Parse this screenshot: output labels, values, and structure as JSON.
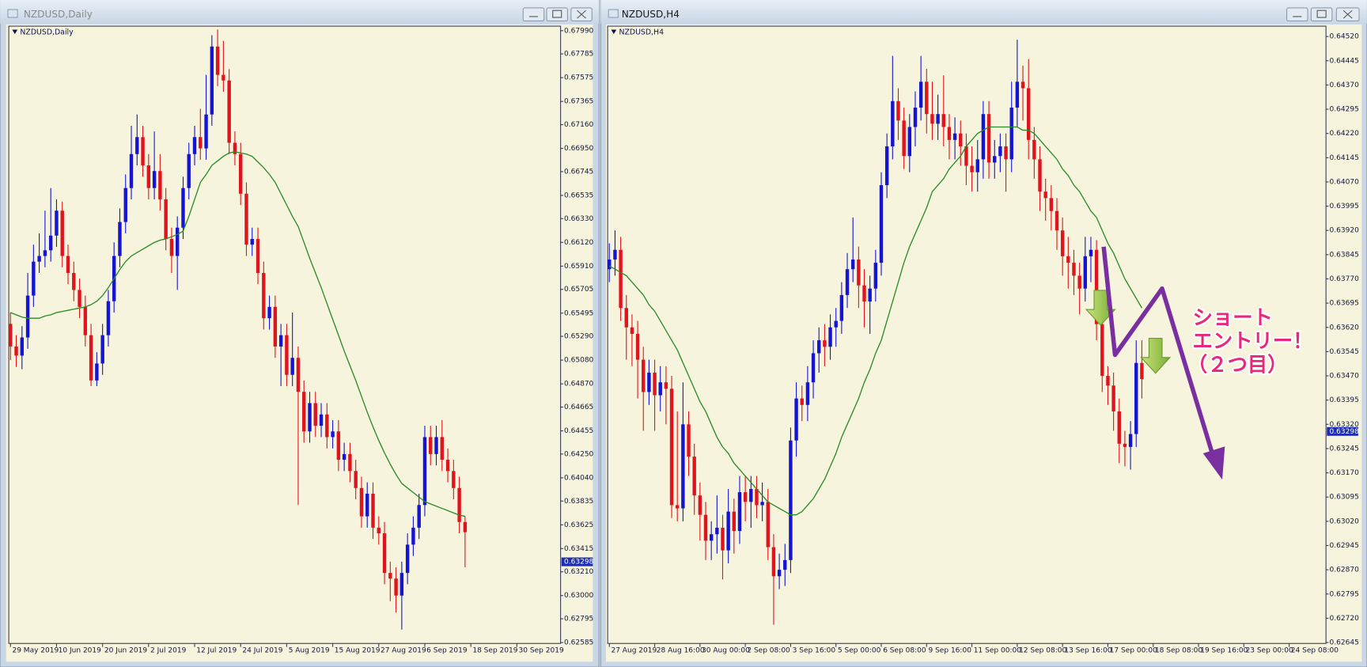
{
  "chart_data": [
    {
      "type": "candlestick",
      "window_title": "NZDUSD,Daily",
      "title": "NZDUSD,Daily",
      "up_color": "#1414d2",
      "down_color": "#e0141e",
      "ma_color": "#2a8a2a",
      "xlim": [
        -0.3,
        95.6
      ],
      "ylim": [
        0.62577,
        0.6803
      ],
      "xticks": [
        {
          "value": 0,
          "label": "29 May 2019"
        },
        {
          "value": 8,
          "label": "10 Jun 2019"
        },
        {
          "value": 16,
          "label": "20 Jun 2019"
        },
        {
          "value": 24,
          "label": "2 Jul 2019"
        },
        {
          "value": 32,
          "label": "12 Jul 2019"
        },
        {
          "value": 40,
          "label": "24 Jul 2019"
        },
        {
          "value": 48,
          "label": "5 Aug 2019"
        },
        {
          "value": 56,
          "label": "15 Aug 2019"
        },
        {
          "value": 64,
          "label": "27 Aug 2019"
        },
        {
          "value": 72,
          "label": "6 Sep 2019"
        },
        {
          "value": 80,
          "label": "18 Sep 2019"
        },
        {
          "value": 88,
          "label": "30 Sep 2019"
        }
      ],
      "yticks": [
        {
          "value": 0.6799,
          "label": "0.67990"
        },
        0.67785,
        0.67575,
        0.67365,
        {
          "value": 0.6716,
          "label": "0.67160"
        },
        {
          "value": 0.6695,
          "label": "0.66950"
        },
        0.66745,
        0.66535,
        {
          "value": 0.6633,
          "label": "0.66330"
        },
        {
          "value": 0.6612,
          "label": "0.66120"
        },
        {
          "value": 0.6591,
          "label": "0.65910"
        },
        0.65705,
        0.65495,
        {
          "value": 0.6529,
          "label": "0.65290"
        },
        {
          "value": 0.6508,
          "label": "0.65080"
        },
        {
          "value": 0.6487,
          "label": "0.64870"
        },
        0.64665,
        0.64455,
        {
          "value": 0.6425,
          "label": "0.64250"
        },
        {
          "value": 0.6404,
          "label": "0.64040"
        },
        0.63835,
        0.63625,
        0.63415,
        {
          "value": 0.6321,
          "label": "0.63210"
        },
        {
          "value": 0.63,
          "label": "0.63000"
        },
        0.62795,
        0.62585
      ],
      "current_price": 0.63298,
      "open": [
        0.654,
        0.652,
        0.6512,
        0.6528,
        0.6565,
        0.6595,
        0.66,
        0.6605,
        0.6618,
        0.664,
        0.66,
        0.6585,
        0.657,
        0.6555,
        0.653,
        0.649,
        0.6505,
        0.653,
        0.656,
        0.66,
        0.663,
        0.666,
        0.669,
        0.6705,
        0.668,
        0.666,
        0.6675,
        0.665,
        0.6615,
        0.66,
        0.6625,
        0.666,
        0.669,
        0.6705,
        0.6695,
        0.6725,
        0.6785,
        0.676,
        0.6755,
        0.67,
        0.669,
        0.6655,
        0.661,
        0.6615,
        0.6585,
        0.6545,
        0.6555,
        0.652,
        0.653,
        0.6495,
        0.651,
        0.648,
        0.6445,
        0.647,
        0.645,
        0.646,
        0.644,
        0.6445,
        0.642,
        0.6425,
        0.641,
        0.6395,
        0.637,
        0.639,
        0.636,
        0.6355,
        0.632,
        0.6315,
        0.63,
        0.632,
        0.6345,
        0.636,
        0.638,
        0.644,
        0.6425,
        0.644,
        0.642,
        0.641,
        0.6395,
        0.6365
      ],
      "high": [
        0.655,
        0.653,
        0.6538,
        0.6585,
        0.661,
        0.662,
        0.664,
        0.666,
        0.665,
        0.6648,
        0.661,
        0.6595,
        0.658,
        0.6565,
        0.654,
        0.6515,
        0.654,
        0.657,
        0.6612,
        0.6642,
        0.6672,
        0.6715,
        0.6725,
        0.6715,
        0.669,
        0.671,
        0.669,
        0.666,
        0.6625,
        0.6635,
        0.667,
        0.67,
        0.6715,
        0.673,
        0.676,
        0.6795,
        0.68,
        0.679,
        0.6765,
        0.671,
        0.67,
        0.6665,
        0.6625,
        0.6625,
        0.6595,
        0.6565,
        0.6565,
        0.654,
        0.654,
        0.655,
        0.652,
        0.649,
        0.648,
        0.648,
        0.647,
        0.647,
        0.6455,
        0.6455,
        0.6435,
        0.6435,
        0.642,
        0.6405,
        0.64,
        0.64,
        0.637,
        0.6365,
        0.633,
        0.6325,
        0.633,
        0.6355,
        0.637,
        0.639,
        0.645,
        0.645,
        0.645,
        0.6455,
        0.643,
        0.642,
        0.6405,
        0.637
      ],
      "low": [
        0.6508,
        0.6502,
        0.65,
        0.6518,
        0.6555,
        0.6585,
        0.659,
        0.6595,
        0.6608,
        0.659,
        0.6575,
        0.656,
        0.6545,
        0.652,
        0.6485,
        0.6485,
        0.6495,
        0.652,
        0.655,
        0.659,
        0.662,
        0.665,
        0.668,
        0.667,
        0.665,
        0.665,
        0.664,
        0.6605,
        0.6585,
        0.657,
        0.6615,
        0.665,
        0.668,
        0.6685,
        0.6685,
        0.6715,
        0.675,
        0.6745,
        0.669,
        0.668,
        0.6645,
        0.66,
        0.66,
        0.6575,
        0.6535,
        0.6535,
        0.651,
        0.6485,
        0.6485,
        0.6485,
        0.638,
        0.6435,
        0.6435,
        0.644,
        0.644,
        0.643,
        0.643,
        0.641,
        0.641,
        0.64,
        0.6385,
        0.636,
        0.636,
        0.635,
        0.6345,
        0.631,
        0.6295,
        0.6285,
        0.627,
        0.631,
        0.6335,
        0.635,
        0.637,
        0.6415,
        0.6415,
        0.641,
        0.64,
        0.6385,
        0.6355,
        0.6325
      ],
      "close": [
        0.652,
        0.6512,
        0.6528,
        0.6565,
        0.6595,
        0.66,
        0.6605,
        0.6618,
        0.664,
        0.66,
        0.6585,
        0.657,
        0.6555,
        0.653,
        0.649,
        0.6505,
        0.653,
        0.656,
        0.66,
        0.663,
        0.666,
        0.669,
        0.6705,
        0.668,
        0.666,
        0.6675,
        0.665,
        0.6615,
        0.66,
        0.6625,
        0.666,
        0.669,
        0.6705,
        0.6695,
        0.6725,
        0.6785,
        0.676,
        0.6755,
        0.67,
        0.669,
        0.6655,
        0.661,
        0.6615,
        0.6585,
        0.6545,
        0.6555,
        0.652,
        0.653,
        0.6495,
        0.651,
        0.648,
        0.6445,
        0.647,
        0.645,
        0.646,
        0.644,
        0.6445,
        0.642,
        0.6425,
        0.641,
        0.6395,
        0.637,
        0.639,
        0.636,
        0.6355,
        0.632,
        0.6315,
        0.63,
        0.632,
        0.6345,
        0.636,
        0.638,
        0.644,
        0.6425,
        0.644,
        0.642,
        0.641,
        0.6395,
        0.6365,
        0.6356
      ],
      "ma": [
        0.655,
        0.6548,
        0.6546,
        0.6545,
        0.6545,
        0.6545,
        0.6547,
        0.6548,
        0.655,
        0.6551,
        0.6552,
        0.6553,
        0.6554,
        0.6555,
        0.6557,
        0.656,
        0.6565,
        0.6572,
        0.658,
        0.6588,
        0.6595,
        0.66,
        0.6603,
        0.6606,
        0.6609,
        0.6612,
        0.6614,
        0.6615,
        0.6617,
        0.6619,
        0.6622,
        0.6635,
        0.665,
        0.6665,
        0.6672,
        0.668,
        0.6684,
        0.6688,
        0.6691,
        0.6692,
        0.6691,
        0.669,
        0.6688,
        0.6683,
        0.6678,
        0.6672,
        0.6665,
        0.6655,
        0.6645,
        0.6635,
        0.6626,
        0.6612,
        0.6598,
        0.6585,
        0.6572,
        0.6558,
        0.6544,
        0.653,
        0.6516,
        0.6503,
        0.649,
        0.6476,
        0.6462,
        0.6449,
        0.6437,
        0.6426,
        0.6416,
        0.6407,
        0.6399,
        0.6395,
        0.6391,
        0.6387,
        0.6383,
        0.6381,
        0.6379,
        0.6377,
        0.6375,
        0.6373,
        0.6371,
        0.637
      ]
    },
    {
      "type": "candlestick",
      "window_title": "NZDUSD,H4",
      "title": "NZDUSD,H4",
      "up_color": "#1414d2",
      "down_color": "#e0141e",
      "ma_color": "#2a8a2a",
      "xlim": [
        -0.3,
        126.5
      ],
      "ylim": [
        0.62642,
        0.64552
      ],
      "xticks": [
        {
          "value": 0,
          "label": "27 Aug 2019"
        },
        {
          "value": 8,
          "label": "28 Aug 16:00"
        },
        {
          "value": 16,
          "label": "30 Aug 00:00"
        },
        {
          "value": 24,
          "label": "2 Sep 08:00"
        },
        {
          "value": 32,
          "label": "3 Sep 16:00"
        },
        {
          "value": 40,
          "label": "5 Sep 00:00"
        },
        {
          "value": 48,
          "label": "6 Sep 08:00"
        },
        {
          "value": 56,
          "label": "9 Sep 16:00"
        },
        {
          "value": 64,
          "label": "11 Sep 00:00"
        },
        {
          "value": 72,
          "label": "12 Sep 08:00"
        },
        {
          "value": 80,
          "label": "13 Sep 16:00"
        },
        {
          "value": 88,
          "label": "17 Sep 00:00"
        },
        {
          "value": 96,
          "label": "18 Sep 08:00"
        },
        {
          "value": 104,
          "label": "19 Sep 16:00"
        },
        {
          "value": 112,
          "label": "23 Sep 00:00"
        },
        {
          "value": 120,
          "label": "24 Sep 08:00"
        }
      ],
      "yticks": [
        {
          "value": 0.6452,
          "label": "0.64520"
        },
        0.64445,
        {
          "value": 0.6437,
          "label": "0.64370"
        },
        0.64295,
        {
          "value": 0.6422,
          "label": "0.64220"
        },
        0.64145,
        {
          "value": 0.6407,
          "label": "0.64070"
        },
        0.63995,
        {
          "value": 0.6392,
          "label": "0.63920"
        },
        0.63845,
        {
          "value": 0.6377,
          "label": "0.63770"
        },
        0.63695,
        {
          "value": 0.6362,
          "label": "0.63620"
        },
        0.63545,
        {
          "value": 0.6347,
          "label": "0.63470"
        },
        0.63395,
        {
          "value": 0.6332,
          "label": "0.63320"
        },
        0.63245,
        {
          "value": 0.6317,
          "label": "0.63170"
        },
        0.63095,
        {
          "value": 0.6302,
          "label": "0.63020"
        },
        0.62945,
        {
          "value": 0.6287,
          "label": "0.62870"
        },
        0.62795,
        {
          "value": 0.6272,
          "label": "0.62720"
        },
        0.62645
      ],
      "current_price": 0.63298,
      "annotations": [
        "ショート",
        "エントリー！",
        "（２つ目）"
      ],
      "open": [
        0.638,
        0.6383,
        0.6386,
        0.6368,
        0.6362,
        0.636,
        0.6352,
        0.6342,
        0.6348,
        0.6341,
        0.6345,
        0.6343,
        0.6307,
        0.6306,
        0.6332,
        0.6322,
        0.631,
        0.6304,
        0.6296,
        0.6298,
        0.63,
        0.6293,
        0.6305,
        0.6299,
        0.6311,
        0.6308,
        0.6312,
        0.6307,
        0.6308,
        0.6294,
        0.6285,
        0.6287,
        0.629,
        0.6327,
        0.634,
        0.6338,
        0.6345,
        0.6354,
        0.6358,
        0.6356,
        0.6362,
        0.6364,
        0.6372,
        0.638,
        0.6383,
        0.6375,
        0.637,
        0.6374,
        0.6382,
        0.6406,
        0.6418,
        0.6432,
        0.6426,
        0.6415,
        0.6424,
        0.643,
        0.6438,
        0.6428,
        0.6425,
        0.6428,
        0.6424,
        0.642,
        0.6422,
        0.6418,
        0.6412,
        0.641,
        0.6414,
        0.6428,
        0.6413,
        0.6415,
        0.6418,
        0.6414,
        0.643,
        0.6438,
        0.6436,
        0.642,
        0.6414,
        0.6404,
        0.6402,
        0.6398,
        0.6392,
        0.6384,
        0.6382,
        0.6378,
        0.6374,
        0.6384,
        0.6386,
        0.6363,
        0.6347,
        0.6344,
        0.6336,
        0.6326,
        0.6325,
        0.6329,
        0.6351
      ],
      "high": [
        0.6388,
        0.6392,
        0.639,
        0.6372,
        0.6366,
        0.6364,
        0.6356,
        0.6352,
        0.6352,
        0.635,
        0.635,
        0.6347,
        0.6336,
        0.6345,
        0.6336,
        0.6326,
        0.6314,
        0.6308,
        0.6302,
        0.631,
        0.6304,
        0.6312,
        0.6309,
        0.6316,
        0.6316,
        0.6316,
        0.6316,
        0.6314,
        0.6312,
        0.6298,
        0.6292,
        0.6295,
        0.6331,
        0.6345,
        0.6344,
        0.635,
        0.6358,
        0.6362,
        0.6363,
        0.6366,
        0.6368,
        0.6376,
        0.6385,
        0.6396,
        0.6387,
        0.638,
        0.6378,
        0.6386,
        0.641,
        0.6422,
        0.6446,
        0.6436,
        0.643,
        0.6428,
        0.6435,
        0.6446,
        0.6442,
        0.6438,
        0.6434,
        0.644,
        0.6428,
        0.6427,
        0.6426,
        0.6422,
        0.6418,
        0.642,
        0.6432,
        0.6432,
        0.642,
        0.6422,
        0.6422,
        0.6438,
        0.6451,
        0.6443,
        0.6445,
        0.6424,
        0.6418,
        0.6408,
        0.6406,
        0.6402,
        0.6396,
        0.639,
        0.6386,
        0.6382,
        0.639,
        0.639,
        0.6389,
        0.6366,
        0.635,
        0.6348,
        0.634,
        0.633,
        0.6333,
        0.6358,
        0.6358
      ],
      "low": [
        0.6376,
        0.6378,
        0.6364,
        0.6352,
        0.635,
        0.634,
        0.633,
        0.6338,
        0.633,
        0.6336,
        0.6332,
        0.6303,
        0.6302,
        0.6302,
        0.6316,
        0.6304,
        0.6296,
        0.629,
        0.629,
        0.6292,
        0.6284,
        0.6289,
        0.6292,
        0.6295,
        0.6302,
        0.63,
        0.6303,
        0.6302,
        0.629,
        0.627,
        0.6281,
        0.6282,
        0.6286,
        0.6322,
        0.6333,
        0.6333,
        0.634,
        0.6348,
        0.635,
        0.6352,
        0.6356,
        0.636,
        0.6368,
        0.6376,
        0.6368,
        0.6362,
        0.636,
        0.637,
        0.6378,
        0.6402,
        0.6414,
        0.642,
        0.6411,
        0.641,
        0.6418,
        0.6426,
        0.6422,
        0.642,
        0.642,
        0.6418,
        0.6414,
        0.6414,
        0.6412,
        0.6406,
        0.6404,
        0.6404,
        0.6408,
        0.6408,
        0.6408,
        0.641,
        0.6404,
        0.641,
        0.6424,
        0.6426,
        0.6414,
        0.6408,
        0.6398,
        0.6395,
        0.6392,
        0.6386,
        0.6378,
        0.6374,
        0.6372,
        0.6366,
        0.637,
        0.6376,
        0.6358,
        0.6342,
        0.6338,
        0.633,
        0.632,
        0.6319,
        0.6318,
        0.6325,
        0.634
      ],
      "close": [
        0.6383,
        0.6386,
        0.6368,
        0.6362,
        0.636,
        0.6352,
        0.6342,
        0.6348,
        0.6341,
        0.6345,
        0.6343,
        0.6307,
        0.6306,
        0.6332,
        0.6322,
        0.631,
        0.6304,
        0.6296,
        0.6298,
        0.63,
        0.6293,
        0.6305,
        0.6299,
        0.6311,
        0.6308,
        0.6312,
        0.6307,
        0.6308,
        0.6294,
        0.6285,
        0.6287,
        0.629,
        0.6327,
        0.634,
        0.6338,
        0.6345,
        0.6354,
        0.6358,
        0.6356,
        0.6362,
        0.6364,
        0.6372,
        0.638,
        0.6383,
        0.6375,
        0.637,
        0.6374,
        0.6382,
        0.6406,
        0.6418,
        0.6432,
        0.6426,
        0.6415,
        0.6424,
        0.643,
        0.6438,
        0.6428,
        0.6425,
        0.6428,
        0.6424,
        0.642,
        0.6422,
        0.6418,
        0.6412,
        0.641,
        0.6414,
        0.6428,
        0.6413,
        0.6415,
        0.6418,
        0.6414,
        0.643,
        0.6438,
        0.6436,
        0.642,
        0.6414,
        0.6404,
        0.6402,
        0.6398,
        0.6392,
        0.6384,
        0.6382,
        0.6378,
        0.6374,
        0.6384,
        0.6386,
        0.6363,
        0.6347,
        0.6344,
        0.6336,
        0.6326,
        0.6325,
        0.6329,
        0.6351,
        0.6346
      ],
      "ma": [
        0.6381,
        0.638,
        0.6379,
        0.6378,
        0.6376,
        0.6374,
        0.6372,
        0.6369,
        0.6367,
        0.6364,
        0.6361,
        0.6358,
        0.6355,
        0.6351,
        0.6347,
        0.6343,
        0.6339,
        0.6336,
        0.6332,
        0.6328,
        0.6325,
        0.6323,
        0.632,
        0.6318,
        0.6316,
        0.6314,
        0.6312,
        0.631,
        0.6308,
        0.6307,
        0.6306,
        0.6305,
        0.6304,
        0.6304,
        0.6305,
        0.6307,
        0.6309,
        0.6312,
        0.6315,
        0.6319,
        0.6323,
        0.6328,
        0.6332,
        0.6336,
        0.634,
        0.6345,
        0.6349,
        0.6354,
        0.6358,
        0.6364,
        0.637,
        0.6376,
        0.6382,
        0.6387,
        0.6391,
        0.6395,
        0.6399,
        0.6404,
        0.6406,
        0.6408,
        0.6411,
        0.6413,
        0.6415,
        0.6418,
        0.642,
        0.6422,
        0.6423,
        0.6424,
        0.6424,
        0.6424,
        0.6424,
        0.6424,
        0.6424,
        0.6423,
        0.6423,
        0.6422,
        0.642,
        0.6418,
        0.6416,
        0.6414,
        0.6411,
        0.6409,
        0.6406,
        0.6404,
        0.6401,
        0.6398,
        0.6396,
        0.6392,
        0.6388,
        0.6385,
        0.6381,
        0.6377,
        0.6374,
        0.6371,
        0.6368
      ]
    }
  ]
}
